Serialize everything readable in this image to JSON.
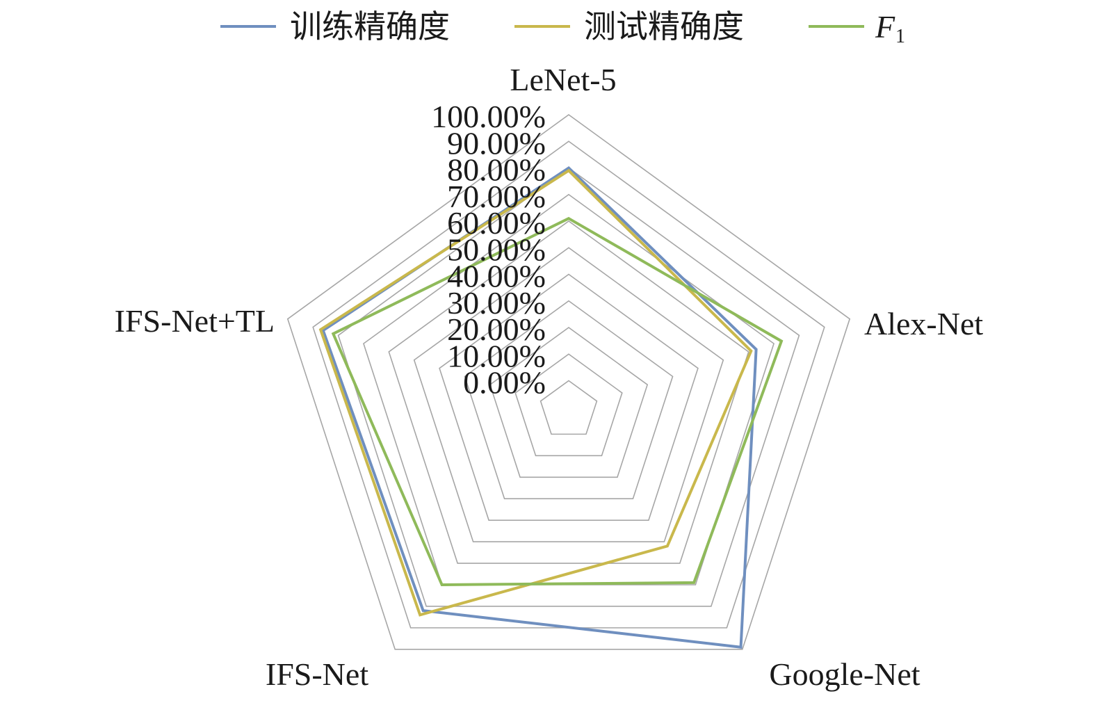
{
  "chart_data": {
    "type": "radar",
    "categories": [
      "LeNet-5",
      "Alex-Net",
      "Google-Net",
      "IFS-Net",
      "IFS-Net+TL"
    ],
    "series": [
      {
        "name": "训练精确度",
        "values": [
          0.8,
          0.63,
          0.99,
          0.82,
          0.86
        ],
        "color": "#6f8fbf"
      },
      {
        "name": "测试精确度",
        "values": [
          0.79,
          0.61,
          0.52,
          0.84,
          0.87
        ],
        "color": "#c9b84c"
      },
      {
        "name": "F",
        "subscript": "1",
        "values": [
          0.61,
          0.73,
          0.69,
          0.7,
          0.82
        ],
        "color": "#8fba5a"
      }
    ],
    "ticks": [
      "0.00%",
      "10.00%",
      "20.00%",
      "30.00%",
      "40.00%",
      "50.00%",
      "60.00%",
      "70.00%",
      "80.00%",
      "90.00%",
      "100.00%"
    ],
    "range": [
      0,
      1
    ],
    "grid": true,
    "legend_position": "top",
    "grid_color": "#a6a6a6"
  }
}
